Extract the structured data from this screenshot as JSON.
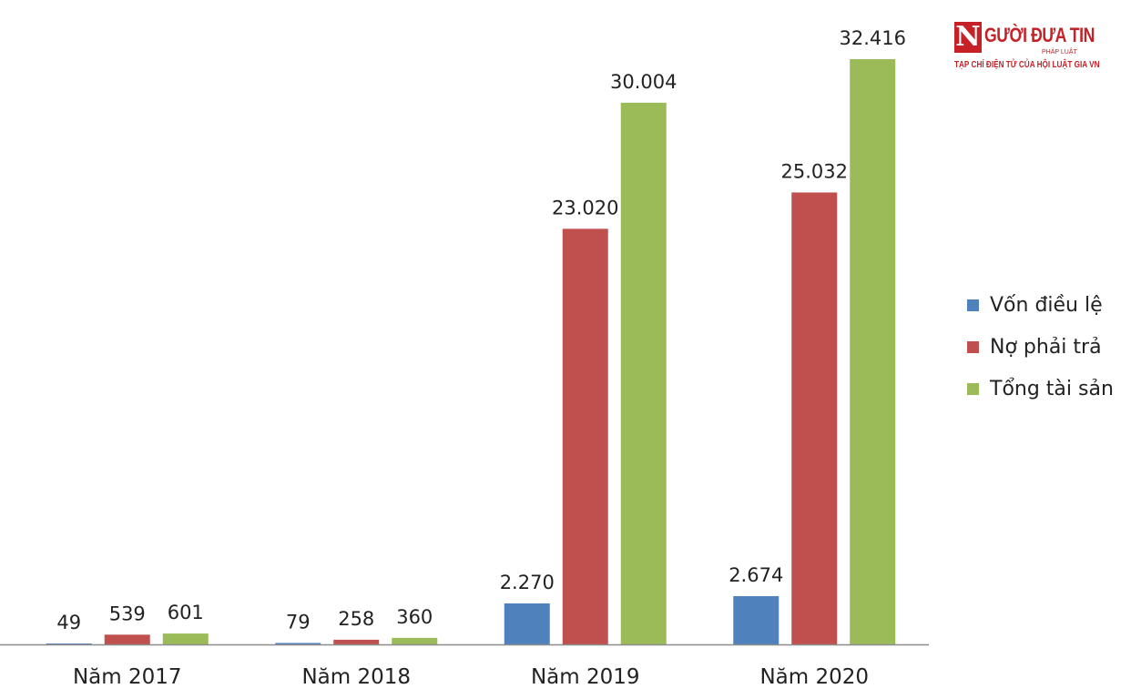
{
  "logo": {
    "mark": "N",
    "title": "GƯỜI ĐƯA TIN",
    "subtitle": "PHÁP LUẬT",
    "tagline": "TẠP CHÍ ĐIỆN TỬ CỦA HỘI LUẬT GIA VN"
  },
  "chart_data": {
    "type": "bar",
    "categories": [
      "Năm 2017",
      "Năm 2018",
      "Năm 2019",
      "Năm 2020"
    ],
    "series": [
      {
        "name": "Vốn điều lệ",
        "color": "#4f81bd",
        "values": [
          49,
          79,
          2270,
          2674
        ],
        "labels": [
          "49",
          "79",
          "2.270",
          "2.674"
        ]
      },
      {
        "name": "Nợ phải trả",
        "color": "#c0504d",
        "values": [
          539,
          258,
          23020,
          25032
        ],
        "labels": [
          "539",
          "258",
          "23.020",
          "25.032"
        ]
      },
      {
        "name": "Tổng tài sản",
        "color": "#9bbb59",
        "values": [
          601,
          360,
          30004,
          32416
        ],
        "labels": [
          "601",
          "360",
          "30.004",
          "32.416"
        ]
      }
    ],
    "title": "",
    "xlabel": "",
    "ylabel": "",
    "ylim": [
      0,
      32416
    ],
    "grid": false,
    "legend_position": "right"
  }
}
